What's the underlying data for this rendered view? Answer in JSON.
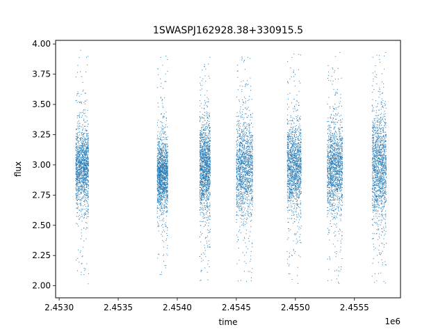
{
  "chart_data": {
    "type": "scatter",
    "title": "1SWASPJ162928.38+330915.5",
    "xlabel": "time",
    "ylabel": "flux",
    "x_offset_label": "1e6",
    "xlim": [
      2452970,
      2455890
    ],
    "ylim": [
      1.9,
      4.03
    ],
    "x_ticks": [
      2453000,
      2453500,
      2454000,
      2454500,
      2455000,
      2455500
    ],
    "x_tick_labels": [
      "2.4530",
      "2.4535",
      "2.4540",
      "2.4545",
      "2.4550",
      "2.4555"
    ],
    "y_ticks": [
      2.0,
      2.25,
      2.5,
      2.75,
      3.0,
      3.25,
      3.5,
      3.75,
      4.0
    ],
    "y_tick_labels": [
      "2.00",
      "2.25",
      "2.50",
      "2.75",
      "3.00",
      "3.25",
      "3.50",
      "3.75",
      "4.00"
    ],
    "grid": false,
    "marker_color": "#1f77b4",
    "seasons": [
      {
        "x_start": 2453140,
        "x_end": 2453250,
        "center": 2.98,
        "spread": 0.16,
        "y_min": 2.0,
        "y_max": 3.95
      },
      {
        "x_start": 2453830,
        "x_end": 2453920,
        "center": 2.92,
        "spread": 0.14,
        "y_min": 2.05,
        "y_max": 3.92
      },
      {
        "x_start": 2454190,
        "x_end": 2454280,
        "center": 2.98,
        "spread": 0.18,
        "y_min": 2.03,
        "y_max": 3.9
      },
      {
        "x_start": 2454500,
        "x_end": 2454640,
        "center": 2.98,
        "spread": 0.2,
        "y_min": 2.0,
        "y_max": 3.9
      },
      {
        "x_start": 2454930,
        "x_end": 2455050,
        "center": 2.98,
        "spread": 0.17,
        "y_min": 2.0,
        "y_max": 3.92
      },
      {
        "x_start": 2455270,
        "x_end": 2455400,
        "center": 2.98,
        "spread": 0.18,
        "y_min": 2.0,
        "y_max": 3.95
      },
      {
        "x_start": 2455650,
        "x_end": 2455770,
        "center": 2.98,
        "spread": 0.22,
        "y_min": 2.0,
        "y_max": 3.94
      }
    ]
  }
}
